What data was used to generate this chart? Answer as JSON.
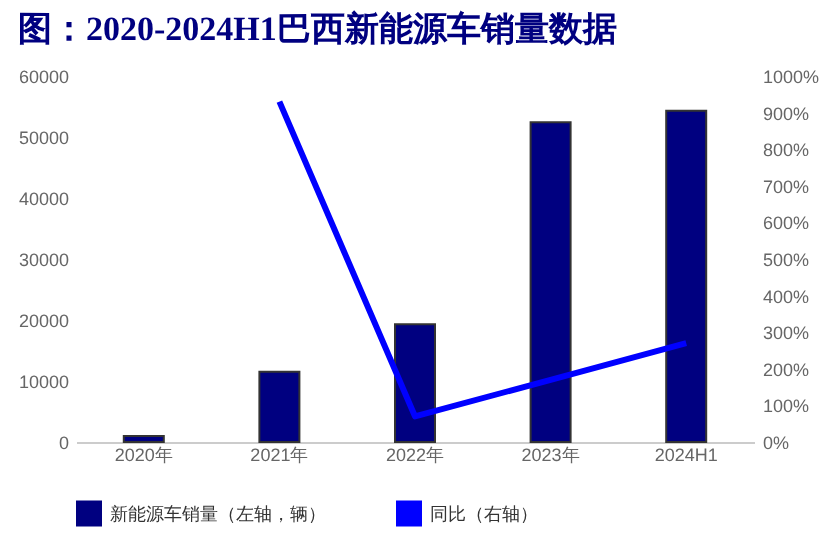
{
  "chart_data": {
    "type": "bar",
    "title": "图：2020-2024H1巴西新能源车销量数据",
    "categories": [
      "2020年",
      "2021年",
      "2022年",
      "2023年",
      "2024H1"
    ],
    "series": [
      {
        "name": "新能源车销量（左轴，辆）",
        "color": "#000080",
        "values": [
          1000,
          11500,
          19300,
          52400,
          54300
        ]
      },
      {
        "name": "同比（右轴）",
        "type": "line",
        "axis": "y2",
        "color": "#0000ff",
        "values": [
          null,
          930,
          70,
          170,
          270
        ]
      }
    ],
    "ylim": [
      0,
      60000
    ],
    "yticks": [
      0,
      10000,
      20000,
      30000,
      40000,
      50000,
      60000
    ],
    "y2lim": [
      0,
      1000
    ],
    "y2ticks": [
      {
        "value": 0,
        "label": "0%"
      },
      {
        "value": 100,
        "label": "100%"
      },
      {
        "value": 200,
        "label": "200%"
      },
      {
        "value": 300,
        "label": "300%"
      },
      {
        "value": 400,
        "label": "400%"
      },
      {
        "value": 500,
        "label": "500%"
      },
      {
        "value": 600,
        "label": "600%"
      },
      {
        "value": 700,
        "label": "700%"
      },
      {
        "value": 800,
        "label": "800%"
      },
      {
        "value": 900,
        "label": "900%"
      },
      {
        "value": 1000,
        "label": "1000%"
      }
    ],
    "legend": "bottom",
    "grid": false
  }
}
